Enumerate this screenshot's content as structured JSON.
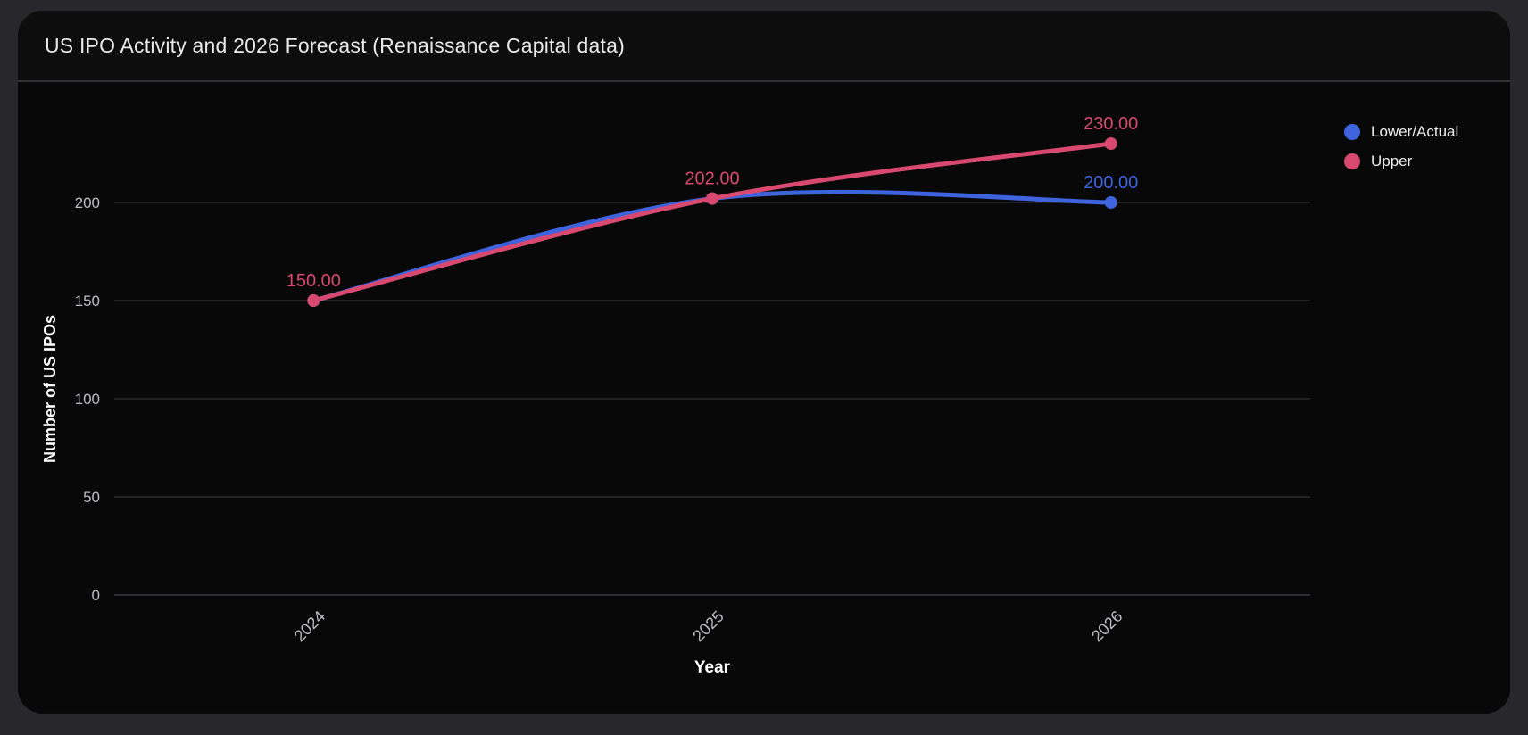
{
  "header": {
    "title": "US IPO Activity and 2026 Forecast (Renaissance Capital data)"
  },
  "chart_data": {
    "type": "line",
    "categories": [
      "2024",
      "2025",
      "2026"
    ],
    "series": [
      {
        "name": "Lower/Actual",
        "values": [
          150,
          202,
          200
        ],
        "color": "#3e63dd",
        "point_labels": [
          null,
          null,
          "200.00"
        ]
      },
      {
        "name": "Upper",
        "values": [
          150,
          202,
          230
        ],
        "color": "#d9486f",
        "point_labels": [
          "150.00",
          "202.00",
          "230.00"
        ]
      }
    ],
    "title": "US IPO Activity and 2026 Forecast (Renaissance Capital data)",
    "xlabel": "Year",
    "ylabel": "Number of US IPOs",
    "yticks": [
      0,
      50,
      100,
      150,
      200
    ],
    "ylim": [
      0,
      260
    ],
    "grid": "horizontal",
    "legend_position": "top-right-outside",
    "line_smoothing": "curved"
  },
  "colors": {
    "page_bg": "#28282c",
    "card_bg": "#09090a",
    "header_bg": "#0d0d0e",
    "chart_bg": "#080809",
    "divider": "#2e2e33",
    "grid_line": "#2a2a2f",
    "axis_line": "#3a3a40",
    "tick_text": "#bdbdc2",
    "axis_title_text": "#ffffff",
    "title_text": "#e8e8e8",
    "series_blue": "#3e63dd",
    "series_pink": "#d9486f"
  }
}
